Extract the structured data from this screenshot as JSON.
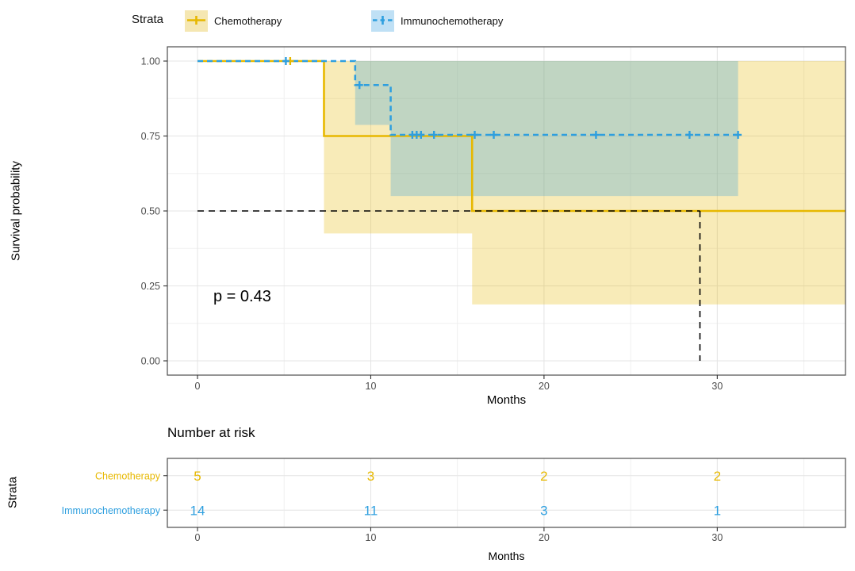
{
  "colors": {
    "chemo": "#E7B800",
    "immuno": "#2E9FDF",
    "band_opacity": 0.28,
    "grid_major": "#E4E4E4",
    "grid_minor": "#F0F0F0",
    "panel_border": "#4D4D4D",
    "axis_tick": "#333333",
    "tick_text": "#4D4D4D",
    "median_line": "#000000"
  },
  "legend": {
    "title": "Strata",
    "items": [
      {
        "label": "Chemotherapy",
        "color": "#E7B800",
        "key_bg": "#F5E7B2",
        "dash": "solid"
      },
      {
        "label": "Immunochemotherapy",
        "color": "#2E9FDF",
        "key_bg": "#BFE0F5",
        "dash": "dashed"
      }
    ]
  },
  "chart_data": {
    "type": "line",
    "subtype": "kaplan_meier_step",
    "title": "",
    "xlabel": "Months",
    "ylabel": "Survival probability",
    "xlim": [
      -1.74,
      37.4
    ],
    "ylim": [
      0,
      1
    ],
    "x_ticks": [
      0,
      10,
      20,
      30
    ],
    "x_minor": [
      5,
      15,
      25,
      35
    ],
    "y_ticks": [
      {
        "v": 1.0,
        "label": "1.00"
      },
      {
        "v": 0.75,
        "label": "0.75"
      },
      {
        "v": 0.5,
        "label": "0.50"
      },
      {
        "v": 0.25,
        "label": "0.25"
      },
      {
        "v": 0.0,
        "label": "0.00"
      }
    ],
    "y_minor": [
      0.125,
      0.375,
      0.625,
      0.875
    ],
    "grid": true,
    "legend_position": "top",
    "p_value_text": "p = 0.43",
    "median_annotation": {
      "y": 0.5,
      "x_from": 0,
      "x_to": 29.0,
      "v_drop_to": 0
    },
    "series": [
      {
        "name": "Chemotherapy",
        "color": "#E7B800",
        "line": "solid",
        "steps": [
          [
            0,
            1
          ],
          [
            7.3,
            1
          ],
          [
            7.3,
            0.75
          ],
          [
            15.85,
            0.75
          ],
          [
            15.85,
            0.5
          ],
          [
            37.4,
            0.5
          ]
        ],
        "censor_marks": [
          [
            5.35,
            1
          ]
        ],
        "ci_upper": 1.0,
        "ci_lower_steps": [
          [
            7.3,
            0.425
          ],
          [
            15.85,
            0.425
          ],
          [
            15.85,
            0.188
          ],
          [
            37.4,
            0.188
          ]
        ]
      },
      {
        "name": "Immunochemotherapy",
        "color": "#2E9FDF",
        "line": "dashed",
        "steps": [
          [
            0,
            1
          ],
          [
            9.1,
            1
          ],
          [
            9.1,
            0.92
          ],
          [
            11.15,
            0.92
          ],
          [
            11.15,
            0.754
          ],
          [
            31.2,
            0.754
          ]
        ],
        "censor_marks": [
          [
            5.1,
            1
          ],
          [
            9.35,
            0.92
          ],
          [
            12.4,
            0.754
          ],
          [
            12.65,
            0.754
          ],
          [
            12.9,
            0.754
          ],
          [
            13.65,
            0.754
          ],
          [
            16.0,
            0.754
          ],
          [
            17.1,
            0.754
          ],
          [
            23.0,
            0.754
          ],
          [
            28.4,
            0.754
          ],
          [
            31.2,
            0.754
          ]
        ],
        "ci_upper": 1.0,
        "ci_lower_steps": [
          [
            9.1,
            0.787
          ],
          [
            11.15,
            0.787
          ],
          [
            11.15,
            0.55
          ],
          [
            31.2,
            0.55
          ]
        ]
      }
    ],
    "risk_table": {
      "title": "Number at risk",
      "axis_label": "Strata",
      "xlabel": "Months",
      "x_ticks": [
        0,
        10,
        20,
        30
      ],
      "x_minor": [
        5,
        15,
        25,
        35
      ],
      "rows": [
        {
          "label": "Chemotherapy",
          "color": "#E7B800",
          "values": [
            "5",
            "3",
            "2",
            "2"
          ]
        },
        {
          "label": "Immunochemotherapy",
          "color": "#2E9FDF",
          "values": [
            "14",
            "11",
            "3",
            "1"
          ]
        }
      ]
    }
  }
}
